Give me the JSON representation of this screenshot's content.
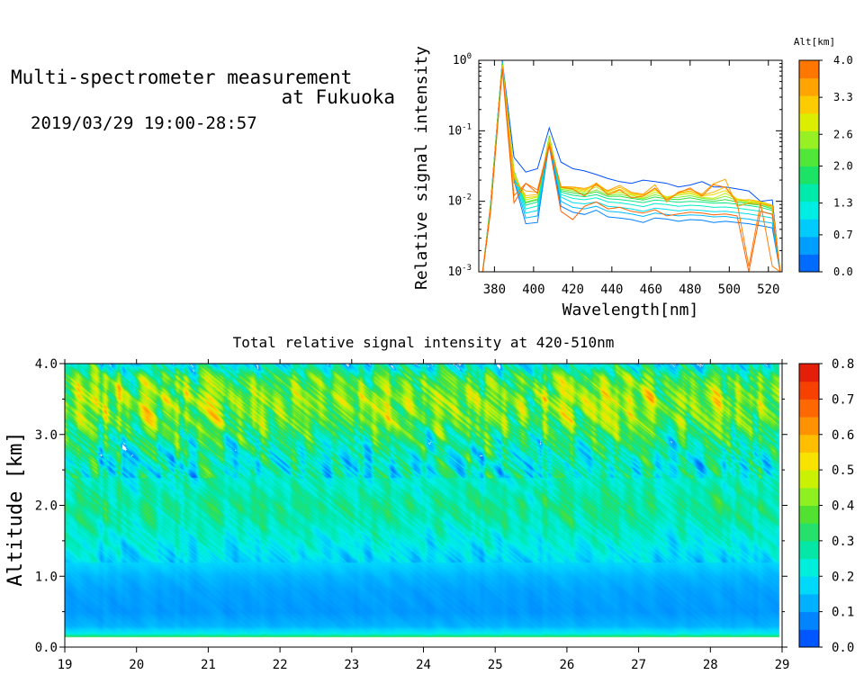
{
  "header": {
    "title_line1": "Multi-spectrometer measurement",
    "title_line2": "at Fukuoka",
    "date_range": "2019/03/29 19:00-28:57"
  },
  "colors": {
    "altitude_scale": [
      "#0050ff",
      "#0090ff",
      "#00c8ff",
      "#00f0e0",
      "#00e89a",
      "#30e040",
      "#80f030",
      "#d8f000",
      "#ffc800",
      "#ff9800",
      "#ff6000"
    ],
    "intensity_scale": [
      "#0040ff",
      "#0070ff",
      "#00a0ff",
      "#00d0ff",
      "#00f0e8",
      "#00e8b0",
      "#20e070",
      "#50e030",
      "#90f020",
      "#d0f000",
      "#ffe000",
      "#ffb400",
      "#ff8400",
      "#ff5a00",
      "#f03000",
      "#d81010"
    ]
  },
  "chart_data": [
    {
      "type": "line",
      "title": "",
      "xlabel": "Wavelength[nm]",
      "ylabel": "Relative signal intensity",
      "xlim": [
        372,
        527
      ],
      "ylim": [
        0.001,
        1
      ],
      "yscale": "log",
      "x_ticks": [
        "380",
        "400",
        "420",
        "440",
        "460",
        "480",
        "500",
        "520"
      ],
      "y_ticks": [
        {
          "base": "10",
          "exp": "-3"
        },
        {
          "base": "10",
          "exp": "-2"
        },
        {
          "base": "10",
          "exp": "-1"
        },
        {
          "base": "10",
          "exp": "0"
        }
      ],
      "legend": {
        "title": "Alt[km]",
        "placement": "right",
        "labels": [
          "4.0",
          "3.3",
          "2.6",
          "2.0",
          "1.3",
          "0.7",
          "0.0"
        ],
        "vmin": 0,
        "vmax": 4
      },
      "x": [
        374,
        378,
        384,
        390,
        396,
        402,
        408,
        414,
        420,
        426,
        432,
        438,
        444,
        450,
        456,
        462,
        468,
        474,
        480,
        486,
        492,
        498,
        504,
        510,
        516,
        522,
        526
      ],
      "series": [
        {
          "alt": 0.0,
          "values": [
            0.001,
            0.009,
            0.98,
            0.042,
            0.026,
            0.029,
            0.11,
            0.036,
            0.029,
            0.027,
            0.024,
            0.021,
            0.019,
            0.018,
            0.02,
            0.019,
            0.018,
            0.016,
            0.017,
            0.019,
            0.016,
            0.016,
            0.015,
            0.014,
            0.01,
            0.0105,
            0.001
          ]
        },
        {
          "alt": 0.3,
          "values": [
            0.001,
            0.008,
            0.9,
            0.02,
            0.0048,
            0.005,
            0.068,
            0.0085,
            0.007,
            0.0065,
            0.0075,
            0.006,
            0.0058,
            0.0055,
            0.005,
            0.0058,
            0.0056,
            0.0052,
            0.0055,
            0.0054,
            0.005,
            0.0052,
            0.005,
            0.0048,
            0.0045,
            0.0042,
            0.001
          ]
        },
        {
          "alt": 0.7,
          "values": [
            0.001,
            0.0085,
            0.92,
            0.022,
            0.0058,
            0.0062,
            0.072,
            0.01,
            0.0082,
            0.0078,
            0.0085,
            0.0072,
            0.007,
            0.0066,
            0.0061,
            0.0068,
            0.0065,
            0.0062,
            0.0064,
            0.0063,
            0.006,
            0.0061,
            0.0058,
            0.0056,
            0.0052,
            0.0049,
            0.001
          ]
        },
        {
          "alt": 1.0,
          "values": [
            0.001,
            0.009,
            0.94,
            0.024,
            0.0068,
            0.0074,
            0.076,
            0.0115,
            0.0096,
            0.0092,
            0.0098,
            0.0085,
            0.0082,
            0.0078,
            0.0072,
            0.008,
            0.0077,
            0.0073,
            0.0076,
            0.0074,
            0.0071,
            0.0072,
            0.0069,
            0.0066,
            0.0062,
            0.0058,
            0.001
          ]
        },
        {
          "alt": 1.3,
          "values": [
            0.001,
            0.0088,
            0.93,
            0.025,
            0.0078,
            0.0086,
            0.08,
            0.0125,
            0.011,
            0.0105,
            0.0112,
            0.0098,
            0.0095,
            0.009,
            0.0084,
            0.0093,
            0.009,
            0.0085,
            0.0088,
            0.0086,
            0.0082,
            0.0083,
            0.008,
            0.0076,
            0.0072,
            0.0066,
            0.001
          ]
        },
        {
          "alt": 1.7,
          "values": [
            0.001,
            0.0086,
            0.92,
            0.026,
            0.0088,
            0.0098,
            0.083,
            0.0135,
            0.0122,
            0.0116,
            0.0124,
            0.0109,
            0.0106,
            0.0101,
            0.0096,
            0.0104,
            0.0101,
            0.0097,
            0.01,
            0.0098,
            0.0094,
            0.0095,
            0.0091,
            0.0087,
            0.0082,
            0.0074,
            0.001
          ]
        },
        {
          "alt": 2.0,
          "values": [
            0.001,
            0.0085,
            0.9,
            0.027,
            0.0095,
            0.0105,
            0.085,
            0.0142,
            0.0132,
            0.0124,
            0.0136,
            0.0117,
            0.0118,
            0.011,
            0.0104,
            0.0115,
            0.0108,
            0.0106,
            0.0112,
            0.0104,
            0.01,
            0.0106,
            0.0098,
            0.0092,
            0.0088,
            0.0078,
            0.001
          ]
        },
        {
          "alt": 2.4,
          "values": [
            0.001,
            0.0082,
            0.88,
            0.026,
            0.0098,
            0.0108,
            0.082,
            0.0148,
            0.014,
            0.0128,
            0.0145,
            0.0122,
            0.0126,
            0.0115,
            0.0108,
            0.0124,
            0.0112,
            0.0114,
            0.012,
            0.011,
            0.0106,
            0.0118,
            0.0103,
            0.0096,
            0.0092,
            0.0081,
            0.001
          ]
        },
        {
          "alt": 2.7,
          "values": [
            0.001,
            0.008,
            0.86,
            0.025,
            0.0105,
            0.0115,
            0.078,
            0.0155,
            0.0146,
            0.0135,
            0.016,
            0.0128,
            0.0135,
            0.0122,
            0.0112,
            0.0135,
            0.0116,
            0.0122,
            0.0128,
            0.0114,
            0.011,
            0.013,
            0.0106,
            0.0098,
            0.0095,
            0.0085,
            0.001
          ]
        },
        {
          "alt": 3.0,
          "values": [
            0.001,
            0.0078,
            0.84,
            0.024,
            0.0112,
            0.0118,
            0.074,
            0.0158,
            0.0152,
            0.014,
            0.0175,
            0.0132,
            0.0148,
            0.0126,
            0.0118,
            0.0145,
            0.0112,
            0.0128,
            0.0134,
            0.0118,
            0.0125,
            0.0142,
            0.0108,
            0.0102,
            0.0097,
            0.0087,
            0.001
          ]
        },
        {
          "alt": 3.3,
          "values": [
            0.001,
            0.0076,
            0.82,
            0.022,
            0.012,
            0.0125,
            0.07,
            0.016,
            0.0158,
            0.0146,
            0.0182,
            0.0138,
            0.0158,
            0.013,
            0.0122,
            0.0152,
            0.0106,
            0.0132,
            0.014,
            0.0122,
            0.0135,
            0.016,
            0.0102,
            0.0106,
            0.0099,
            0.0088,
            0.001
          ]
        },
        {
          "alt": 3.5,
          "values": [
            0.001,
            0.0074,
            0.8,
            0.018,
            0.014,
            0.0135,
            0.068,
            0.0162,
            0.016,
            0.0152,
            0.0168,
            0.0142,
            0.0168,
            0.0134,
            0.0126,
            0.0172,
            0.0098,
            0.0136,
            0.0148,
            0.0126,
            0.0178,
            0.0205,
            0.0085,
            0.0094,
            0.0092,
            0.0085,
            0.001
          ]
        },
        {
          "alt": 3.8,
          "values": [
            0.001,
            0.0072,
            0.78,
            0.012,
            0.018,
            0.0145,
            0.065,
            0.0158,
            0.015,
            0.0118,
            0.0178,
            0.0124,
            0.0145,
            0.0112,
            0.0118,
            0.0155,
            0.0104,
            0.0132,
            0.0155,
            0.0118,
            0.0172,
            0.0158,
            0.0096,
            0.0012,
            0.0095,
            0.0012,
            0.001
          ]
        },
        {
          "alt": 4.0,
          "values": [
            0.001,
            0.007,
            0.75,
            0.0095,
            0.018,
            0.013,
            0.06,
            0.0072,
            0.0055,
            0.0085,
            0.0098,
            0.0078,
            0.0082,
            0.0072,
            0.0068,
            0.0076,
            0.0062,
            0.0066,
            0.007,
            0.0068,
            0.0064,
            0.0066,
            0.0062,
            0.001,
            0.0072,
            0.0065,
            0.001
          ]
        }
      ]
    },
    {
      "type": "heatmap",
      "title": "Total relative signal intensity at 420-510nm",
      "xlabel": "",
      "ylabel": "Altitude [km]",
      "xlim": [
        19,
        29
      ],
      "ylim": [
        0,
        4
      ],
      "data_xlim": [
        19,
        28.95
      ],
      "data_ylim": [
        0.15,
        4
      ],
      "x_ticks": [
        "19",
        "20",
        "21",
        "22",
        "23",
        "24",
        "25",
        "26",
        "27",
        "28",
        "29"
      ],
      "y_ticks": [
        "0.0",
        "1.0",
        "2.0",
        "3.0",
        "4.0"
      ],
      "colorbar": {
        "placement": "right",
        "labels": [
          "0.0",
          "0.1",
          "0.2",
          "0.3",
          "0.4",
          "0.5",
          "0.6",
          "0.7",
          "0.8"
        ],
        "vmin": 0,
        "vmax": 0.8
      },
      "altitude_profile": [
        {
          "alt": 0.15,
          "value": 0.34
        },
        {
          "alt": 0.2,
          "value": 0.2
        },
        {
          "alt": 0.3,
          "value": 0.13
        },
        {
          "alt": 0.5,
          "value": 0.1
        },
        {
          "alt": 0.8,
          "value": 0.11
        },
        {
          "alt": 1.0,
          "value": 0.13
        },
        {
          "alt": 1.2,
          "value": 0.17
        },
        {
          "alt": 1.5,
          "value": 0.22
        },
        {
          "alt": 1.8,
          "value": 0.27
        },
        {
          "alt": 2.0,
          "value": 0.29
        },
        {
          "alt": 2.3,
          "value": 0.25
        },
        {
          "alt": 2.6,
          "value": 0.23
        },
        {
          "alt": 2.9,
          "value": 0.29
        },
        {
          "alt": 3.2,
          "value": 0.39
        },
        {
          "alt": 3.5,
          "value": 0.43
        },
        {
          "alt": 3.8,
          "value": 0.36
        },
        {
          "alt": 4.0,
          "value": 0.2
        }
      ]
    }
  ]
}
